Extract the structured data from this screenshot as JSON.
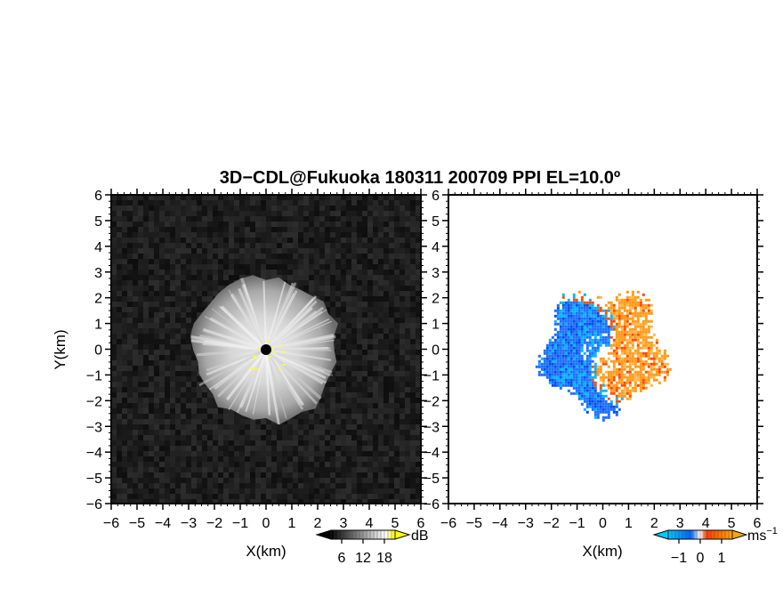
{
  "title": "3D−CDL@Fukuoka 180311 200709 PPI EL=10.0º",
  "chart_data": [
    {
      "type": "heatmap",
      "panel": "left",
      "quantity": "signal-to-noise",
      "xlabel": "X(km)",
      "ylabel": "Y(km)",
      "xlim": [
        -6,
        6
      ],
      "ylim": [
        -6,
        6
      ],
      "xticks": [
        "−6",
        "−5",
        "−4",
        "−3",
        "−2",
        "−1",
        "0",
        "1",
        "2",
        "3",
        "4",
        "5",
        "6"
      ],
      "yticks": [
        "6",
        "5",
        "4",
        "3",
        "2",
        "1",
        "0",
        "−1",
        "−2",
        "−3",
        "−4",
        "−5",
        "−6"
      ],
      "echo_radius_km": 2.8,
      "colorbar": {
        "unit": "dB",
        "ticks": [
          "6",
          "12",
          "18"
        ],
        "range": [
          3,
          21
        ],
        "colors": [
          "#000000",
          "#ffffff",
          "#ffff00"
        ]
      },
      "background_color": "#1a1a1a"
    },
    {
      "type": "heatmap",
      "panel": "right",
      "quantity": "radial velocity",
      "xlabel": "X(km)",
      "ylabel": "",
      "xlim": [
        -6,
        6
      ],
      "ylim": [
        -6,
        6
      ],
      "xticks": [
        "−6",
        "−5",
        "−4",
        "−3",
        "−2",
        "−1",
        "0",
        "1",
        "2",
        "3",
        "4",
        "5",
        "6"
      ],
      "yticks": [
        "6",
        "5",
        "4",
        "3",
        "2",
        "1",
        "0",
        "−1",
        "−2",
        "−3",
        "−4",
        "−5",
        "−6"
      ],
      "echo_radius_km": 2.6,
      "colorbar": {
        "unit": "ms",
        "unit_sup": "−1",
        "ticks": [
          "−1",
          "0",
          "1"
        ],
        "range": [
          -1.5,
          1.5
        ],
        "colors": [
          "#00c8ff",
          "#0064ff",
          "#ff3c00",
          "#ffa500"
        ]
      },
      "approaching_color": "#1e6fff",
      "receding_color": "#ff9a1a"
    }
  ]
}
